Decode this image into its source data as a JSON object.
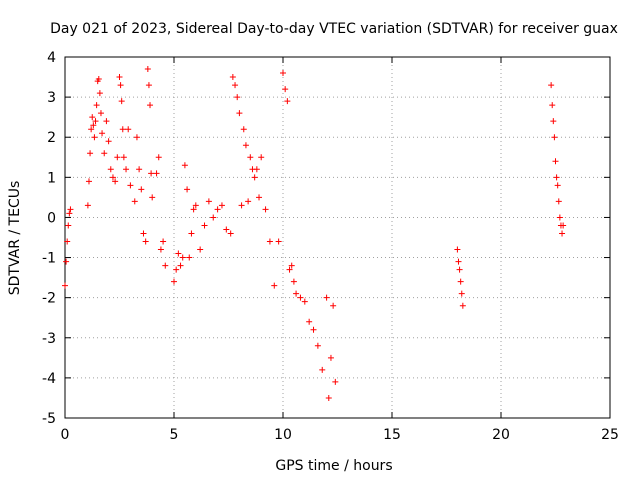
{
  "chart_data": {
    "type": "scatter",
    "title": "Day 021 of 2023, Sidereal Day-to-day VTEC variation (SDTVAR) for receiver guax",
    "xlabel": "GPS time / hours",
    "ylabel": "SDTVAR / TECUs",
    "xlim": [
      0,
      25
    ],
    "ylim": [
      -5,
      4
    ],
    "xticks": [
      0,
      5,
      10,
      15,
      20,
      25
    ],
    "yticks": [
      -5,
      -4,
      -3,
      -2,
      -1,
      0,
      1,
      2,
      3,
      4
    ],
    "grid": true,
    "marker": "plus",
    "color": "#ff0000",
    "series": [
      {
        "name": "SDTVAR",
        "x": [
          0.0,
          0.05,
          0.1,
          0.15,
          0.2,
          0.25,
          1.05,
          1.1,
          1.15,
          1.2,
          1.25,
          1.3,
          1.35,
          1.4,
          1.45,
          1.5,
          1.55,
          1.6,
          1.65,
          1.7,
          1.8,
          1.9,
          2.0,
          2.1,
          2.2,
          2.3,
          2.4,
          2.5,
          2.55,
          2.6,
          2.65,
          2.7,
          2.8,
          2.9,
          3.0,
          3.2,
          3.3,
          3.4,
          3.5,
          3.6,
          3.7,
          3.8,
          3.85,
          3.9,
          3.95,
          4.0,
          4.2,
          4.3,
          4.4,
          4.5,
          4.6,
          5.0,
          5.1,
          5.2,
          5.3,
          5.4,
          5.5,
          5.6,
          5.7,
          5.8,
          5.9,
          6.0,
          6.2,
          6.4,
          6.6,
          6.8,
          7.0,
          7.2,
          7.4,
          7.6,
          7.7,
          7.8,
          7.9,
          8.0,
          8.1,
          8.2,
          8.3,
          8.4,
          8.5,
          8.6,
          8.7,
          8.8,
          8.9,
          9.0,
          9.2,
          9.4,
          9.6,
          9.8,
          10.0,
          10.1,
          10.2,
          10.3,
          10.4,
          10.5,
          10.6,
          10.8,
          11.0,
          11.2,
          11.4,
          11.6,
          11.8,
          12.0,
          12.1,
          12.2,
          12.3,
          12.4,
          18.0,
          18.05,
          18.1,
          18.15,
          18.2,
          18.25,
          22.3,
          22.35,
          22.4,
          22.45,
          22.5,
          22.55,
          22.6,
          22.65,
          22.7,
          22.75,
          22.8,
          22.85
        ],
        "values": [
          -1.7,
          -1.1,
          -0.6,
          -0.2,
          0.1,
          0.2,
          0.3,
          0.9,
          1.6,
          2.2,
          2.5,
          2.3,
          2.0,
          2.4,
          2.8,
          3.4,
          3.45,
          3.1,
          2.6,
          2.1,
          1.6,
          2.4,
          1.9,
          1.2,
          1.0,
          0.9,
          1.5,
          3.5,
          3.3,
          2.9,
          2.2,
          1.5,
          1.2,
          2.2,
          0.8,
          0.4,
          2.0,
          1.2,
          0.7,
          -0.4,
          -0.6,
          3.7,
          3.3,
          2.8,
          1.1,
          0.5,
          1.1,
          1.5,
          -0.8,
          -0.6,
          -1.2,
          -1.6,
          -1.3,
          -0.9,
          -1.2,
          -1.0,
          1.3,
          0.7,
          -1.0,
          -0.4,
          0.2,
          0.3,
          -0.8,
          -0.2,
          0.4,
          0.0,
          0.2,
          0.3,
          -0.3,
          -0.4,
          3.5,
          3.3,
          3.0,
          2.6,
          0.3,
          2.2,
          1.8,
          0.4,
          1.5,
          1.2,
          1.0,
          1.2,
          0.5,
          1.5,
          0.2,
          -0.6,
          -1.7,
          -0.6,
          3.6,
          3.2,
          2.9,
          -1.3,
          -1.2,
          -1.6,
          -1.9,
          -2.0,
          -2.1,
          -2.6,
          -2.8,
          -3.2,
          -3.8,
          -2.0,
          -4.5,
          -3.5,
          -2.2,
          -4.1,
          -0.8,
          -1.1,
          -1.3,
          -1.6,
          -1.9,
          -2.2,
          3.3,
          2.8,
          2.4,
          2.0,
          1.4,
          1.0,
          0.8,
          0.4,
          0.0,
          -0.2,
          -0.4,
          -0.2
        ]
      }
    ]
  }
}
